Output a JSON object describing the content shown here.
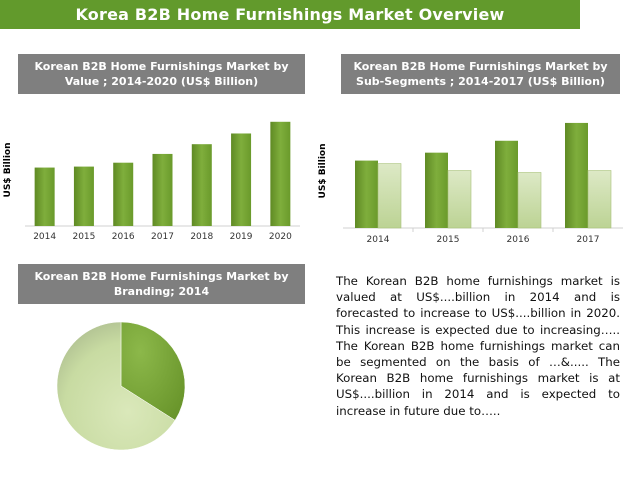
{
  "header": {
    "title": "Korea B2B Home Furnishings Market Overview"
  },
  "panels": {
    "value": {
      "title": "Korean B2B Home Furnishings Market by Value ; 2014-2020 (US$ Billion)"
    },
    "subsegments": {
      "title": "Korean B2B Home Furnishings Market by Sub-Segments ; 2014-2017 (US$ Billion)"
    },
    "branding": {
      "title": "Korean B2B Home Furnishings Market by Branding; 2014"
    }
  },
  "description": "The Korean B2B home furnishings market is valued at US$....billion in 2014 and is forecasted to increase to US$....billion in 2020. This increase is expected due to increasing….. The Korean B2B home furnishings market can be segmented on the basis of …&..... The Korean B2B home furnishings market is at US$....billion in 2014 and is expected to increase in future due to…..",
  "colors": {
    "banner": "#629a2c",
    "panel_title_bg": "#7f7f7f",
    "bar_dark": "#6f9a2e",
    "bar_light": "#d3e4b2",
    "pie_dark": "#7aa63a",
    "pie_light": "#cfdfaa"
  },
  "chart_data": [
    {
      "type": "bar",
      "categories": [
        "2014",
        "2015",
        "2016",
        "2017",
        "2018",
        "2019",
        "2020"
      ],
      "values": [
        60,
        61,
        65,
        74,
        84,
        95,
        107
      ],
      "ylabel": "US$ Billion",
      "ylim": [
        0,
        115
      ],
      "grid": false,
      "note": "values estimated; y axis unlabeled"
    },
    {
      "type": "bar",
      "categories": [
        "2014",
        "2015",
        "2016",
        "2017"
      ],
      "series": [
        {
          "values": [
            68,
            76,
            88,
            106
          ]
        },
        {
          "values": [
            65,
            58,
            56,
            58
          ]
        }
      ],
      "ylabel": "US$ Billion",
      "ylim": [
        0,
        115
      ],
      "grid": false,
      "note": "values estimated; y axis unlabeled"
    },
    {
      "type": "pie",
      "values": [
        34,
        66
      ]
    }
  ]
}
